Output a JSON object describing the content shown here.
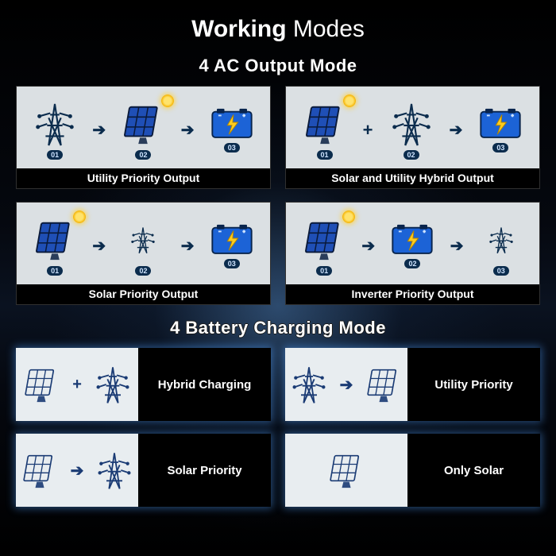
{
  "colors": {
    "accent_blue": "#1c63d6",
    "panel_blue": "#1f4fb6",
    "dark_navy": "#0b2c4d",
    "bolt_yellow": "#ffcc1e",
    "panel_bg": "#dbe0e3",
    "bc_left_bg": "#e8edf0",
    "outline_dark": "#1a3b74",
    "caption_bg": "#000000",
    "caption_text": "#ffffff",
    "page_bg": "#05080f"
  },
  "title": {
    "bold": "Working",
    "thin": " Modes"
  },
  "sections": {
    "ac": "4 AC Output Mode",
    "bc": "4 Battery Charging Mode"
  },
  "badge_labels": [
    "01",
    "02",
    "03"
  ],
  "ac_modes": [
    {
      "caption": "Utility Priority Output",
      "seq": [
        {
          "icon": "tower",
          "size": "big",
          "sun": false,
          "badge": 0
        },
        {
          "connector": "arrow"
        },
        {
          "icon": "solar",
          "size": "big",
          "sun": true,
          "badge": 1
        },
        {
          "connector": "arrow"
        },
        {
          "icon": "battery",
          "size": "big",
          "sun": false,
          "badge": 2
        }
      ]
    },
    {
      "caption": "Solar and Utility Hybrid Output",
      "seq": [
        {
          "icon": "solar",
          "size": "big",
          "sun": true,
          "badge": 0
        },
        {
          "connector": "plus"
        },
        {
          "icon": "tower",
          "size": "big",
          "sun": false,
          "badge": 1
        },
        {
          "connector": "arrow"
        },
        {
          "icon": "battery",
          "size": "big",
          "sun": false,
          "badge": 2
        }
      ]
    },
    {
      "caption": "Solar Priority Output",
      "seq": [
        {
          "icon": "solar",
          "size": "big",
          "sun": true,
          "badge": 0
        },
        {
          "connector": "arrow"
        },
        {
          "icon": "tower",
          "size": "small",
          "sun": false,
          "badge": 1
        },
        {
          "connector": "arrow"
        },
        {
          "icon": "battery",
          "size": "big",
          "sun": false,
          "badge": 2
        }
      ]
    },
    {
      "caption": "Inverter Priority Output",
      "seq": [
        {
          "icon": "solar",
          "size": "big",
          "sun": true,
          "badge": 0
        },
        {
          "connector": "arrow"
        },
        {
          "icon": "battery",
          "size": "big",
          "sun": false,
          "badge": 1
        },
        {
          "connector": "arrow"
        },
        {
          "icon": "tower",
          "size": "small",
          "sun": false,
          "badge": 2
        }
      ]
    }
  ],
  "bc_modes": [
    {
      "label": "Hybrid Charging",
      "seq": [
        {
          "icon": "solar",
          "sun": true
        },
        {
          "connector": "plus"
        },
        {
          "icon": "tower"
        }
      ]
    },
    {
      "label": "Utility Priority",
      "seq": [
        {
          "icon": "tower"
        },
        {
          "connector": "arrow"
        },
        {
          "icon": "solar",
          "sun": true
        }
      ]
    },
    {
      "label": "Solar Priority",
      "seq": [
        {
          "icon": "solar",
          "sun": true
        },
        {
          "connector": "arrow"
        },
        {
          "icon": "tower"
        }
      ]
    },
    {
      "label": "Only Solar",
      "seq": [
        {
          "icon": "solar",
          "sun": true
        }
      ]
    }
  ],
  "icon_sizes": {
    "ac_big": 58,
    "ac_small": 44,
    "bc": 50
  },
  "typography": {
    "title_fontsize": 30,
    "section_fontsize": 22,
    "caption_fontsize": 14,
    "bc_label_fontsize": 15,
    "badge_fontsize": 9
  }
}
